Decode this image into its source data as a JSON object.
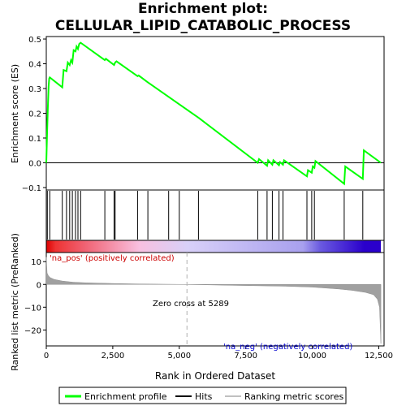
{
  "title_line1": "Enrichment plot:",
  "title_line2": "CELLULAR_LIPID_CATABOLIC_PROCESS",
  "chart_data": [
    {
      "type": "line",
      "name": "enrichment-score-panel",
      "ylabel": "Enrichment score (ES)",
      "xlim": [
        0,
        12700
      ],
      "ylim": [
        -0.11,
        0.51
      ],
      "yticks": [
        -0.1,
        0.0,
        0.1,
        0.2,
        0.3,
        0.4,
        0.5
      ],
      "ytick_labels": [
        "−0.1",
        "0.0",
        "0.1",
        "0.2",
        "0.3",
        "0.4",
        "0.5"
      ],
      "grid": false,
      "color": "#00ff00",
      "x": [
        0,
        30,
        60,
        90,
        110,
        130,
        600,
        650,
        760,
        810,
        880,
        930,
        980,
        1030,
        1100,
        1140,
        1190,
        1240,
        1290,
        2200,
        2240,
        2550,
        2590,
        2640,
        3430,
        3470,
        3820,
        3860,
        5750,
        7950,
        8000,
        8300,
        8340,
        8500,
        8540,
        8750,
        8790,
        8900,
        8940,
        9800,
        9840,
        9980,
        10020,
        10080,
        10120,
        11200,
        11240,
        11900,
        11940,
        12580
      ],
      "values": [
        0.0,
        0.12,
        0.23,
        0.31,
        0.34,
        0.345,
        0.305,
        0.375,
        0.37,
        0.405,
        0.395,
        0.415,
        0.405,
        0.455,
        0.45,
        0.47,
        0.46,
        0.48,
        0.485,
        0.415,
        0.42,
        0.395,
        0.405,
        0.41,
        0.35,
        0.353,
        0.325,
        0.322,
        0.18,
        0.0,
        0.015,
        -0.012,
        0.01,
        -0.008,
        0.01,
        -0.01,
        0.003,
        -0.008,
        0.01,
        -0.055,
        -0.03,
        -0.04,
        -0.015,
        -0.02,
        0.007,
        -0.085,
        -0.015,
        -0.065,
        0.05,
        0.0
      ]
    },
    {
      "type": "hits",
      "name": "hits-panel",
      "xlim": [
        0,
        12700
      ],
      "hits": [
        40,
        130,
        600,
        760,
        880,
        980,
        1100,
        1190,
        1290,
        2200,
        2550,
        2590,
        3430,
        3820,
        4600,
        5000,
        5720,
        7950,
        8300,
        8500,
        8750,
        8900,
        9800,
        9980,
        10080,
        11200,
        11900
      ]
    },
    {
      "type": "heatmap",
      "name": "ranking-color-bar",
      "xlim": [
        0,
        12700
      ],
      "stops": [
        {
          "x": 0,
          "color": "#dd0000"
        },
        {
          "x": 350,
          "color": "#ee3333"
        },
        {
          "x": 1400,
          "color": "#f06070"
        },
        {
          "x": 3500,
          "color": "#f8c0e0"
        },
        {
          "x": 5300,
          "color": "#d8d0f8"
        },
        {
          "x": 9650,
          "color": "#a8a0ee"
        },
        {
          "x": 10300,
          "color": "#6a5ae0"
        },
        {
          "x": 11950,
          "color": "#2a00cc"
        },
        {
          "x": 12580,
          "color": "#2a00cc"
        }
      ]
    },
    {
      "type": "area",
      "name": "ranked-list-metric-panel",
      "ylabel": "Ranked list metric (PreRanked)",
      "xlabel": "Rank in Ordered Dataset",
      "xlim": [
        0,
        12700
      ],
      "ylim": [
        -27,
        14
      ],
      "xticks": [
        0,
        2500,
        5000,
        7500,
        10000,
        12500
      ],
      "xtick_labels": [
        "0",
        "2,500",
        "5,000",
        "7,500",
        "10,000",
        "12,500"
      ],
      "yticks": [
        10,
        0,
        -10,
        -20
      ],
      "ytick_labels": [
        "10",
        "0",
        "−10",
        "−20"
      ],
      "fill_color": "#a0a0a0",
      "x": [
        0,
        30,
        80,
        150,
        300,
        600,
        1000,
        1500,
        2500,
        3500,
        5289,
        7000,
        9000,
        10000,
        11000,
        11500,
        12000,
        12300,
        12450,
        12530,
        12580
      ],
      "values": [
        12,
        5,
        3.8,
        3,
        2.2,
        1.5,
        1.0,
        0.7,
        0.4,
        0.2,
        0,
        -0.4,
        -0.8,
        -1.2,
        -2.0,
        -2.6,
        -3.5,
        -4.5,
        -6.5,
        -10,
        -26
      ],
      "zero_cross_label": "Zero cross at 5289",
      "zero_cross_x": 5289,
      "pos_label": "'na_pos' (positively correlated)",
      "neg_label": "'na_neg' (negatively correlated)"
    }
  ],
  "legend": {
    "items": [
      {
        "label": "Enrichment profile",
        "color": "#00ff00"
      },
      {
        "label": "Hits",
        "color": "#000000"
      },
      {
        "label": "Ranking metric scores",
        "color": "#c0c0c0"
      }
    ]
  }
}
